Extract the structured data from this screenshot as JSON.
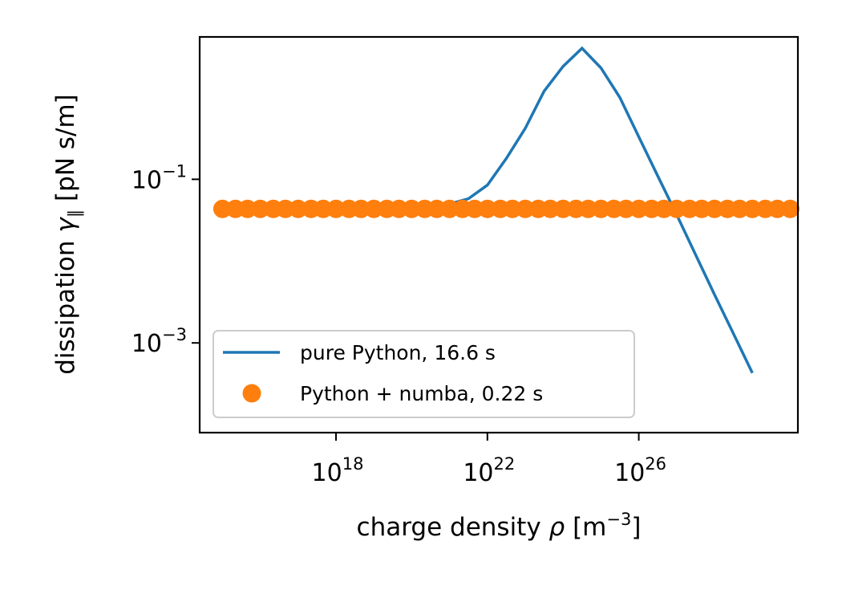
{
  "chart_data": {
    "type": "line",
    "xscale": "log",
    "yscale": "log",
    "xlabel": {
      "pre": "charge density ",
      "sym": "ρ",
      "post": " [m",
      "sup": "−3",
      "end": "]"
    },
    "ylabel": {
      "pre": "dissipation ",
      "sym": "γ",
      "sub": "∥",
      "post": "  [pN s/m]"
    },
    "x_ticks": [
      {
        "base": "10",
        "exp": "18",
        "value": 1e+18
      },
      {
        "base": "10",
        "exp": "22",
        "value": 1e+22
      },
      {
        "base": "10",
        "exp": "26",
        "value": 1e+26
      }
    ],
    "y_ticks": [
      {
        "base": "10",
        "exp": "−1",
        "value": 0.1
      },
      {
        "base": "10",
        "exp": "−3",
        "value": 0.001
      }
    ],
    "xlim": [
      250000000000000.0,
      1.6e+30
    ],
    "ylim": [
      8e-05,
      5.5
    ],
    "grid": false,
    "legend_position": "lower-left",
    "series": [
      {
        "name": "pure Python, 16.6 s",
        "style": "line",
        "color": "#1f77b4",
        "x": [
          1000000000000000.0,
          3160000000000000.0,
          1e+16,
          3.16e+16,
          1e+17,
          3.16e+17,
          1e+18,
          3.16e+18,
          1e+19,
          3.16e+19,
          1e+20,
          3.16e+20,
          1e+21,
          3.16e+21,
          1e+22,
          3.16e+22,
          1e+23,
          3.16e+23,
          1e+24,
          3.16e+24,
          1e+25,
          3.16e+25,
          1e+26,
          3.16e+26,
          1e+27,
          3.16e+27,
          1e+28,
          3.16e+28,
          1e+29
        ],
        "y": [
          0.045,
          0.045,
          0.045,
          0.045,
          0.045,
          0.045,
          0.045,
          0.045,
          0.045,
          0.045,
          0.045,
          0.046,
          0.05,
          0.058,
          0.085,
          0.18,
          0.42,
          1.2,
          2.4,
          4.0,
          2.3,
          1.0,
          0.33,
          0.11,
          0.037,
          0.012,
          0.0039,
          0.0013,
          0.00043
        ]
      },
      {
        "name": "Python + numba, 0.22 s",
        "style": "markers",
        "color": "#ff7f0e",
        "x": [
          1000000000000000.0,
          2200000000000000.0,
          4600000000000000.0,
          1e+16,
          2.2e+16,
          4.6e+16,
          1e+17,
          2.2e+17,
          4.6e+17,
          1e+18,
          2.2e+18,
          4.6e+18,
          1e+19,
          2.2e+19,
          4.6e+19,
          1e+20,
          2.2e+20,
          4.6e+20,
          1e+21,
          2.2e+21,
          4.6e+21,
          1e+22,
          2.2e+22,
          4.6e+22,
          1e+23,
          2.2e+23,
          4.6e+23,
          1e+24,
          2.2e+24,
          4.6e+24,
          1e+25,
          2.2e+25,
          4.6e+25,
          1e+26,
          2.2e+26,
          4.6e+26,
          1e+27,
          2.2e+27,
          4.6e+27,
          1e+28,
          2.2e+28,
          4.6e+28,
          1e+29,
          2.2e+29,
          4.6e+29,
          1e+30
        ],
        "y": [
          0.0435,
          0.0435,
          0.0435,
          0.0435,
          0.0435,
          0.0435,
          0.0435,
          0.0435,
          0.0435,
          0.0435,
          0.0435,
          0.0435,
          0.0435,
          0.0435,
          0.0435,
          0.0435,
          0.0435,
          0.0435,
          0.0435,
          0.0435,
          0.0435,
          0.0435,
          0.0435,
          0.0435,
          0.0435,
          0.0435,
          0.0435,
          0.0435,
          0.0435,
          0.0435,
          0.0435,
          0.0435,
          0.0435,
          0.0435,
          0.0435,
          0.0435,
          0.0435,
          0.0435,
          0.0435,
          0.0435,
          0.0435,
          0.0435,
          0.0435,
          0.0435,
          0.0435,
          0.0435
        ]
      }
    ]
  }
}
